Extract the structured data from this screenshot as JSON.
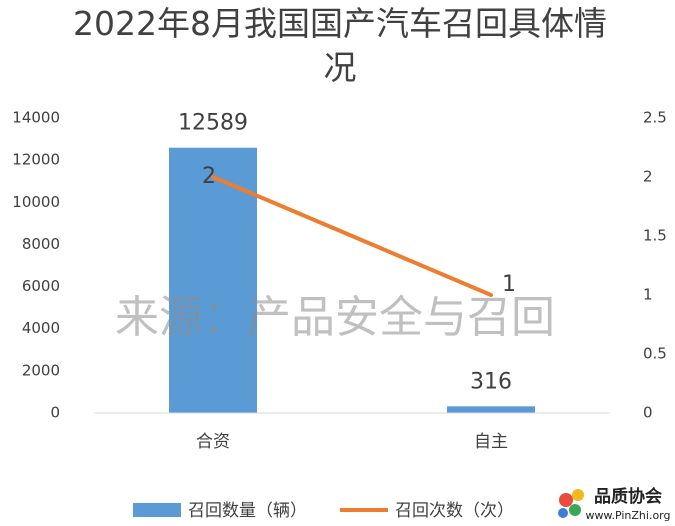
{
  "chart_data": {
    "type": "bar",
    "title": "2022年8月我国国产汽车召回具体情况",
    "categories": [
      "合资",
      "自主"
    ],
    "series": [
      {
        "name": "召回数量（辆）",
        "type": "bar",
        "color": "#5b9bd5",
        "values": [
          12589,
          316
        ]
      },
      {
        "name": "召回次数（次）",
        "type": "line",
        "axis": "y2",
        "color": "#ed7d31",
        "values": [
          2,
          1
        ]
      }
    ],
    "ylim": [
      0,
      14000
    ],
    "yticks": [
      0,
      2000,
      4000,
      6000,
      8000,
      10000,
      12000,
      14000
    ],
    "y2lim": [
      0,
      2.5
    ],
    "y2ticks": [
      0,
      0.5,
      1,
      1.5,
      2,
      2.5
    ],
    "legend": "bottom",
    "watermark": "来源：产品安全与召回",
    "logo": {
      "name": "品质协会",
      "url": "www.PinZhi.org"
    }
  }
}
